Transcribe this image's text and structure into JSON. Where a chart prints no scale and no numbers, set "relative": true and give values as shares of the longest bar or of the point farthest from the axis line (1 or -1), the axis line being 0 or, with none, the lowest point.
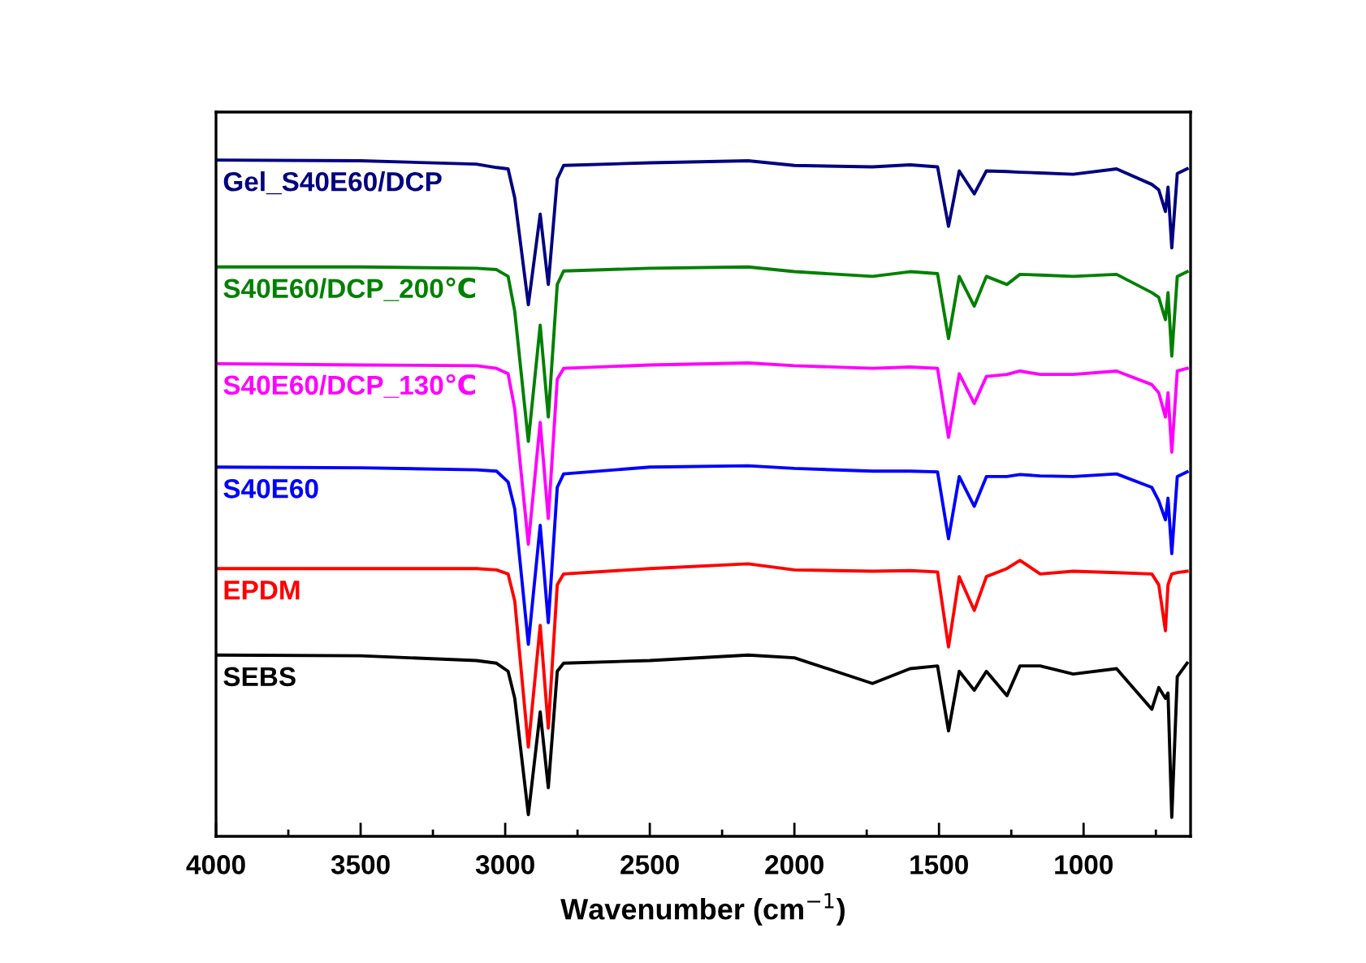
{
  "chart_data": {
    "type": "line",
    "relative": true,
    "xlabel": "Wavenumber (cm$^{−1}$)",
    "x": [
      4000,
      3500,
      3100,
      3030,
      2990,
      2967,
      2920,
      2879,
      2851,
      2820,
      2798,
      2500,
      2160,
      2000,
      1730,
      1600,
      1505,
      1467,
      1430,
      1378,
      1336,
      1265,
      1220,
      1150,
      1036,
      886,
      764,
      740,
      717,
      708,
      695,
      676,
      642
    ],
    "xlim": [
      4000,
      630
    ],
    "xticks": [
      4000,
      {
        "value": 3750,
        "label": null
      },
      3500,
      {
        "value": 3250,
        "label": null
      },
      3000,
      {
        "value": 2750,
        "label": null
      },
      2500,
      {
        "value": 2250,
        "label": null
      },
      2000,
      {
        "value": 1750,
        "label": null
      },
      1500,
      {
        "value": 1250,
        "label": null
      },
      1000,
      {
        "value": 750,
        "label": null
      }
    ],
    "tick_labels": "x",
    "grid": false,
    "legend": false,
    "marker": "none",
    "line_style": "solid",
    "series": [
      {
        "name": "Gel_S40E60/DCP",
        "color": "#000080",
        "values": [
          1.0,
          0.999,
          0.994,
          0.989,
          0.987,
          0.944,
          0.786,
          0.92,
          0.816,
          0.972,
          0.992,
          0.996,
          0.999,
          0.992,
          0.99,
          0.993,
          0.99,
          0.902,
          0.984,
          0.95,
          0.984,
          0.983,
          0.982,
          0.981,
          0.979,
          0.987,
          0.964,
          0.956,
          0.924,
          0.96,
          0.87,
          0.98,
          0.987
        ]
      },
      {
        "name": "S40E60/DCP_200℃",
        "color": "#008000",
        "values": [
          0.842,
          0.842,
          0.84,
          0.838,
          0.828,
          0.776,
          0.584,
          0.756,
          0.62,
          0.816,
          0.836,
          0.84,
          0.842,
          0.835,
          0.828,
          0.835,
          0.832,
          0.736,
          0.828,
          0.784,
          0.828,
          0.816,
          0.831,
          0.83,
          0.828,
          0.831,
          0.804,
          0.797,
          0.764,
          0.804,
          0.71,
          0.828,
          0.835
        ]
      },
      {
        "name": "S40E60/DCP_130℃",
        "color": "#ff00ff",
        "values": [
          0.699,
          0.697,
          0.696,
          0.692,
          0.684,
          0.632,
          0.432,
          0.612,
          0.47,
          0.676,
          0.692,
          0.697,
          0.7,
          0.696,
          0.692,
          0.694,
          0.692,
          0.59,
          0.684,
          0.64,
          0.68,
          0.683,
          0.688,
          0.683,
          0.683,
          0.688,
          0.668,
          0.656,
          0.62,
          0.656,
          0.568,
          0.688,
          0.692
        ]
      },
      {
        "name": "S40E60",
        "color": "#0000ff",
        "values": [
          0.546,
          0.545,
          0.542,
          0.54,
          0.524,
          0.484,
          0.284,
          0.46,
          0.316,
          0.516,
          0.536,
          0.546,
          0.548,
          0.544,
          0.54,
          0.54,
          0.539,
          0.44,
          0.532,
          0.488,
          0.532,
          0.532,
          0.535,
          0.533,
          0.532,
          0.536,
          0.516,
          0.496,
          0.468,
          0.5,
          0.418,
          0.532,
          0.539
        ]
      },
      {
        "name": "EPDM",
        "color": "#ff0000",
        "values": [
          0.396,
          0.396,
          0.396,
          0.394,
          0.388,
          0.348,
          0.132,
          0.312,
          0.16,
          0.372,
          0.388,
          0.396,
          0.403,
          0.394,
          0.392,
          0.393,
          0.391,
          0.28,
          0.384,
          0.334,
          0.384,
          0.396,
          0.408,
          0.388,
          0.392,
          0.39,
          0.388,
          0.372,
          0.304,
          0.372,
          0.388,
          0.39,
          0.392
        ]
      },
      {
        "name": "SEBS",
        "color": "#000000",
        "values": [
          0.268,
          0.267,
          0.26,
          0.256,
          0.244,
          0.204,
          0.032,
          0.184,
          0.072,
          0.244,
          0.256,
          0.26,
          0.268,
          0.264,
          0.226,
          0.248,
          0.252,
          0.156,
          0.244,
          0.216,
          0.244,
          0.208,
          0.252,
          0.252,
          0.24,
          0.248,
          0.188,
          0.22,
          0.204,
          0.212,
          0.028,
          0.236,
          0.256
        ]
      }
    ]
  }
}
